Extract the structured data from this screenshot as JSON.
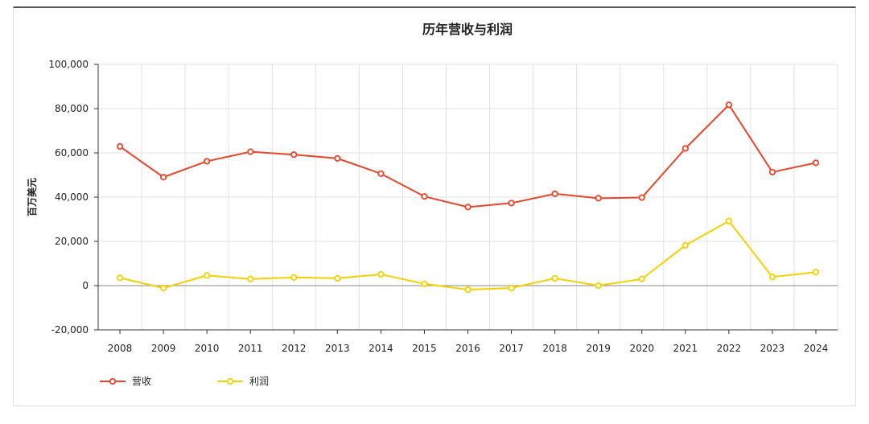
{
  "chart_data": {
    "type": "line",
    "title": "历年营收与利润",
    "xlabel": "",
    "ylabel": "百万美元",
    "ylim": [
      -20000,
      100000
    ],
    "yticks": [
      -20000,
      0,
      20000,
      40000,
      60000,
      80000,
      100000
    ],
    "ytick_labels": [
      "-20,000",
      "0",
      "20,000",
      "40,000",
      "60,000",
      "80,000",
      "100,000"
    ],
    "grid": true,
    "legend_position": "bottom-left",
    "categories": [
      "2008",
      "2009",
      "2010",
      "2011",
      "2012",
      "2013",
      "2014",
      "2015",
      "2016",
      "2017",
      "2018",
      "2019",
      "2020",
      "2021",
      "2022",
      "2023",
      "2024"
    ],
    "series": [
      {
        "name": "营收",
        "color": "#e8452c",
        "values": [
          62900,
          49000,
          56200,
          60500,
          59200,
          57500,
          50600,
          40300,
          35500,
          37300,
          41500,
          39500,
          39800,
          62000,
          81700,
          51300,
          55500
        ]
      },
      {
        "name": "利润",
        "color": "#f5d000",
        "values": [
          3500,
          -1100,
          4600,
          3000,
          3700,
          3300,
          5100,
          800,
          -1800,
          -1100,
          3300,
          0,
          3000,
          18200,
          29200,
          3900,
          6100
        ]
      }
    ]
  }
}
